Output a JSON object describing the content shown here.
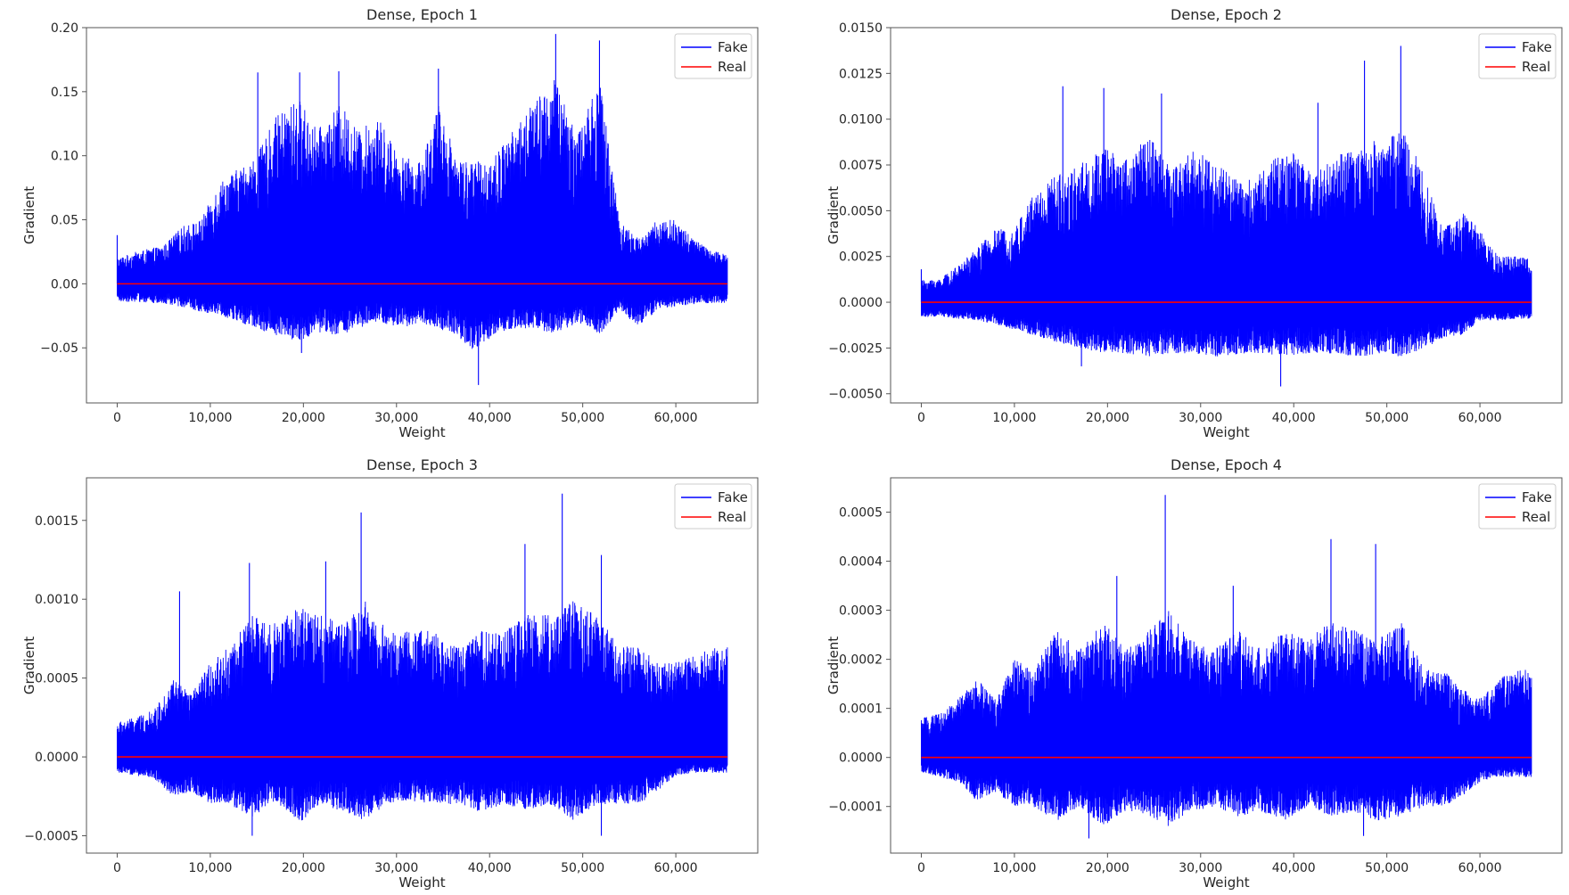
{
  "figure": {
    "background": "#ffffff"
  },
  "chart_data": [
    {
      "type": "line",
      "title": "Dense, Epoch 1",
      "xlabel": "Weight",
      "ylabel": "Gradient",
      "xlim": [
        -3300,
        68800
      ],
      "ylim": [
        -0.093,
        0.2
      ],
      "xticks": [
        0,
        10000,
        20000,
        30000,
        40000,
        50000,
        60000
      ],
      "xtick_labels": [
        "0",
        "10,000",
        "20,000",
        "30,000",
        "40,000",
        "50,000",
        "60,000"
      ],
      "yticks": [
        -0.05,
        0.0,
        0.05,
        0.1,
        0.15,
        0.2
      ],
      "ytick_labels": [
        "−0.05",
        "0.00",
        "0.05",
        "0.10",
        "0.15",
        "0.20"
      ],
      "legend": {
        "location": "top-right",
        "entries": [
          "Fake",
          "Real"
        ]
      },
      "x_range": [
        0,
        65536
      ],
      "series": [
        {
          "name": "Fake",
          "color": "#0000ff",
          "envelope": {
            "weights": [
              0,
              2000,
              5000,
              7000,
              9000,
              11000,
              13000,
              15000,
              17000,
              19500,
              21500,
              24000,
              26000,
              28000,
              30500,
              32500,
              34500,
              36500,
              38500,
              40500,
              42500,
              44500,
              47000,
              49500,
              51800,
              54000,
              56000,
              58000,
              60000,
              62000,
              64000,
              65536
            ],
            "upper": [
              0.02,
              0.025,
              0.03,
              0.045,
              0.05,
              0.08,
              0.09,
              0.1,
              0.13,
              0.145,
              0.12,
              0.14,
              0.12,
              0.13,
              0.1,
              0.095,
              0.14,
              0.1,
              0.095,
              0.1,
              0.12,
              0.14,
              0.16,
              0.12,
              0.16,
              0.05,
              0.035,
              0.05,
              0.05,
              0.035,
              0.025,
              0.025
            ],
            "lower": [
              -0.014,
              -0.014,
              -0.016,
              -0.018,
              -0.022,
              -0.024,
              -0.03,
              -0.035,
              -0.04,
              -0.045,
              -0.038,
              -0.04,
              -0.035,
              -0.03,
              -0.035,
              -0.03,
              -0.035,
              -0.04,
              -0.055,
              -0.04,
              -0.035,
              -0.035,
              -0.04,
              -0.03,
              -0.04,
              -0.02,
              -0.035,
              -0.02,
              -0.018,
              -0.016,
              -0.015,
              -0.015
            ]
          },
          "spikes": [
            {
              "weight": 0,
              "value": 0.038
            },
            {
              "weight": 15100,
              "value": 0.165
            },
            {
              "weight": 19600,
              "value": 0.165
            },
            {
              "weight": 23800,
              "value": 0.166
            },
            {
              "weight": 34500,
              "value": 0.168
            },
            {
              "weight": 47100,
              "value": 0.195
            },
            {
              "weight": 51800,
              "value": 0.19
            },
            {
              "weight": 38800,
              "value": -0.079
            },
            {
              "weight": 19800,
              "value": -0.054
            }
          ]
        },
        {
          "name": "Real",
          "color": "#ff0000",
          "value": 0.0
        }
      ]
    },
    {
      "type": "line",
      "title": "Dense, Epoch 2",
      "xlabel": "Weight",
      "ylabel": "Gradient",
      "xlim": [
        -3300,
        68800
      ],
      "ylim": [
        -0.0055,
        0.015
      ],
      "xticks": [
        0,
        10000,
        20000,
        30000,
        40000,
        50000,
        60000
      ],
      "xtick_labels": [
        "0",
        "10,000",
        "20,000",
        "30,000",
        "40,000",
        "50,000",
        "60,000"
      ],
      "yticks": [
        -0.005,
        -0.0025,
        0.0,
        0.0025,
        0.005,
        0.0075,
        0.01,
        0.0125,
        0.015
      ],
      "ytick_labels": [
        "−0.0050",
        "−0.0025",
        "0.0000",
        "0.0025",
        "0.0050",
        "0.0075",
        "0.0100",
        "0.0125",
        "0.0150"
      ],
      "legend": {
        "location": "top-right",
        "entries": [
          "Fake",
          "Real"
        ]
      },
      "x_range": [
        0,
        65536
      ],
      "series": [
        {
          "name": "Fake",
          "color": "#0000ff",
          "envelope": {
            "weights": [
              0,
              2000,
              4000,
              6000,
              8000,
              10000,
              12000,
              14500,
              17000,
              19500,
              22000,
              24500,
              27000,
              29500,
              32000,
              34500,
              37000,
              39500,
              42000,
              44500,
              47000,
              49500,
              51800,
              54000,
              56000,
              58000,
              60000,
              62000,
              64000,
              65536
            ],
            "upper": [
              0.0012,
              0.0013,
              0.002,
              0.003,
              0.004,
              0.004,
              0.006,
              0.007,
              0.0075,
              0.0085,
              0.008,
              0.009,
              0.0075,
              0.0085,
              0.0075,
              0.0065,
              0.0075,
              0.0085,
              0.007,
              0.008,
              0.0085,
              0.009,
              0.0095,
              0.007,
              0.004,
              0.005,
              0.004,
              0.0025,
              0.0025,
              0.0025
            ],
            "lower": [
              -0.0008,
              -0.0008,
              -0.0009,
              -0.001,
              -0.0012,
              -0.0015,
              -0.0018,
              -0.0022,
              -0.0025,
              -0.0028,
              -0.0028,
              -0.003,
              -0.0028,
              -0.0028,
              -0.003,
              -0.0028,
              -0.0028,
              -0.003,
              -0.0028,
              -0.0028,
              -0.003,
              -0.0028,
              -0.003,
              -0.0025,
              -0.002,
              -0.0018,
              -0.001,
              -0.001,
              -0.0009,
              -0.0009
            ]
          },
          "spikes": [
            {
              "weight": 0,
              "value": 0.0018
            },
            {
              "weight": 15200,
              "value": 0.0118
            },
            {
              "weight": 19600,
              "value": 0.0117
            },
            {
              "weight": 25800,
              "value": 0.0114
            },
            {
              "weight": 42600,
              "value": 0.0109
            },
            {
              "weight": 47600,
              "value": 0.0132
            },
            {
              "weight": 51500,
              "value": 0.014
            },
            {
              "weight": 38600,
              "value": -0.0046
            },
            {
              "weight": 17200,
              "value": -0.0035
            }
          ]
        },
        {
          "name": "Real",
          "color": "#ff0000",
          "value": 0.0
        }
      ]
    },
    {
      "type": "line",
      "title": "Dense, Epoch 3",
      "xlabel": "Weight",
      "ylabel": "Gradient",
      "xlim": [
        -3300,
        68800
      ],
      "ylim": [
        -0.00061,
        0.00177
      ],
      "xticks": [
        0,
        10000,
        20000,
        30000,
        40000,
        50000,
        60000
      ],
      "xtick_labels": [
        "0",
        "10,000",
        "20,000",
        "30,000",
        "40,000",
        "50,000",
        "60,000"
      ],
      "yticks": [
        -0.0005,
        0.0,
        0.0005,
        0.001,
        0.0015
      ],
      "ytick_labels": [
        "−0.0005",
        "0.0000",
        "0.0005",
        "0.0010",
        "0.0015"
      ],
      "legend": {
        "location": "top-right",
        "entries": [
          "Fake",
          "Real"
        ]
      },
      "x_range": [
        0,
        65536
      ],
      "series": [
        {
          "name": "Fake",
          "color": "#0000ff",
          "envelope": {
            "weights": [
              0,
              2000,
              4000,
              6000,
              8000,
              10000,
              12000,
              14500,
              17000,
              19500,
              22000,
              24500,
              26500,
              29000,
              31500,
              34000,
              36500,
              39000,
              41500,
              44000,
              46500,
              49000,
              51500,
              54000,
              56000,
              58000,
              60000,
              62000,
              64000,
              65536
            ],
            "upper": [
              0.00022,
              0.00025,
              0.0003,
              0.0005,
              0.0004,
              0.0006,
              0.0007,
              0.0009,
              0.00085,
              0.00095,
              0.0009,
              0.00085,
              0.001,
              0.0008,
              0.0008,
              0.0008,
              0.0007,
              0.0008,
              0.0008,
              0.0009,
              0.0009,
              0.001,
              0.0009,
              0.0007,
              0.0007,
              0.0006,
              0.0006,
              0.00065,
              0.0007,
              0.0007
            ],
            "lower": [
              -0.0001,
              -0.00012,
              -0.00014,
              -0.00025,
              -0.00022,
              -0.0003,
              -0.0003,
              -0.00038,
              -0.00028,
              -0.00042,
              -0.0003,
              -0.00036,
              -0.0004,
              -0.0003,
              -0.00028,
              -0.0003,
              -0.0003,
              -0.00035,
              -0.0003,
              -0.00034,
              -0.0003,
              -0.0004,
              -0.0003,
              -0.0003,
              -0.0003,
              -0.00022,
              -0.00012,
              -0.0001,
              -0.0001,
              -0.0001
            ]
          },
          "spikes": [
            {
              "weight": 6700,
              "value": 0.00105
            },
            {
              "weight": 14200,
              "value": 0.00123
            },
            {
              "weight": 22400,
              "value": 0.00124
            },
            {
              "weight": 26200,
              "value": 0.00155
            },
            {
              "weight": 43800,
              "value": 0.00135
            },
            {
              "weight": 47800,
              "value": 0.00167
            },
            {
              "weight": 52000,
              "value": 0.00128
            },
            {
              "weight": 14500,
              "value": -0.0005
            },
            {
              "weight": 52000,
              "value": -0.0005
            }
          ]
        },
        {
          "name": "Real",
          "color": "#ff0000",
          "value": 0.0
        }
      ]
    },
    {
      "type": "line",
      "title": "Dense, Epoch 4",
      "xlabel": "Weight",
      "ylabel": "Gradient",
      "xlim": [
        -3300,
        68800
      ],
      "ylim": [
        -0.000195,
        0.00057
      ],
      "xticks": [
        0,
        10000,
        20000,
        30000,
        40000,
        50000,
        60000
      ],
      "xtick_labels": [
        "0",
        "10,000",
        "20,000",
        "30,000",
        "40,000",
        "50,000",
        "60,000"
      ],
      "yticks": [
        -0.0001,
        0.0,
        0.0001,
        0.0002,
        0.0003,
        0.0004,
        0.0005
      ],
      "ytick_labels": [
        "−0.0001",
        "0.0000",
        "0.0001",
        "0.0002",
        "0.0003",
        "0.0004",
        "0.0005"
      ],
      "legend": {
        "location": "top-right",
        "entries": [
          "Fake",
          "Real"
        ]
      },
      "x_range": [
        0,
        65536
      ],
      "series": [
        {
          "name": "Fake",
          "color": "#0000ff",
          "envelope": {
            "weights": [
              0,
              2000,
              4000,
              6000,
              8000,
              10000,
              12000,
              14500,
              17000,
              19500,
              22000,
              24500,
              26500,
              29000,
              31500,
              34000,
              36500,
              39000,
              41500,
              44000,
              46500,
              49000,
              51500,
              54000,
              56000,
              58000,
              60000,
              62000,
              64000,
              65536
            ],
            "upper": [
              8e-05,
              9e-05,
              0.00012,
              0.00016,
              0.00012,
              0.0002,
              0.00018,
              0.00026,
              0.00022,
              0.00028,
              0.00022,
              0.00026,
              0.0003,
              0.00024,
              0.00022,
              0.00026,
              0.00022,
              0.00026,
              0.00024,
              0.00028,
              0.00026,
              0.00024,
              0.00028,
              0.00018,
              0.00018,
              0.00014,
              0.00012,
              0.00016,
              0.00018,
              0.00018
            ],
            "lower": [
              -3e-05,
              -4e-05,
              -5e-05,
              -9e-05,
              -7e-05,
              -0.0001,
              -0.0001,
              -0.00013,
              -0.0001,
              -0.00014,
              -0.00011,
              -0.00012,
              -0.00014,
              -0.00011,
              -0.0001,
              -0.00012,
              -0.00011,
              -0.00013,
              -0.0001,
              -0.00012,
              -0.00011,
              -0.00013,
              -0.00012,
              -0.0001,
              -0.0001,
              -8e-05,
              -5e-05,
              -4e-05,
              -4e-05,
              -4e-05
            ]
          },
          "spikes": [
            {
              "weight": 26200,
              "value": 0.000535
            },
            {
              "weight": 44000,
              "value": 0.000445
            },
            {
              "weight": 48800,
              "value": 0.000435
            },
            {
              "weight": 21000,
              "value": 0.00037
            },
            {
              "weight": 33500,
              "value": 0.00035
            },
            {
              "weight": 18000,
              "value": -0.000165
            },
            {
              "weight": 47500,
              "value": -0.00016
            }
          ]
        },
        {
          "name": "Real",
          "color": "#ff0000",
          "value": 0.0
        }
      ]
    }
  ]
}
